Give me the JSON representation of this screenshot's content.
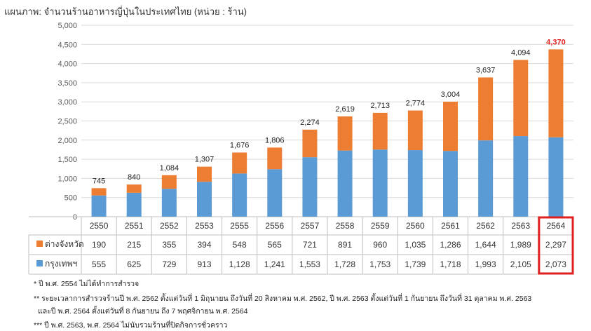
{
  "chart_data": {
    "type": "bar",
    "stacked": true,
    "title": "แผนภาพ: จำนวนร้านอาหารญี่ปุ่นในประเทศไทย (หน่วย : ร้าน)",
    "categories": [
      "2550",
      "2551",
      "2552",
      "2553",
      "2555",
      "2556",
      "2557",
      "2558",
      "2559",
      "2560",
      "2561",
      "2562",
      "2563",
      "2564"
    ],
    "series": [
      {
        "name": "กรุงเทพฯ",
        "color": "#5b9bd5",
        "values": [
          555,
          625,
          729,
          913,
          1128,
          1241,
          1553,
          1728,
          1753,
          1739,
          1718,
          1993,
          2105,
          2073
        ],
        "labels": [
          "555",
          "625",
          "729",
          "913",
          "1,128",
          "1,241",
          "1,553",
          "1,728",
          "1,753",
          "1,739",
          "1,718",
          "1,993",
          "2,105",
          "2,073"
        ]
      },
      {
        "name": "ต่างจังหวัด",
        "color": "#ed7d31",
        "values": [
          190,
          215,
          355,
          394,
          548,
          565,
          721,
          891,
          960,
          1035,
          1286,
          1644,
          1989,
          2297
        ],
        "labels": [
          "190",
          "215",
          "355",
          "394",
          "548",
          "565",
          "721",
          "891",
          "960",
          "1,035",
          "1,286",
          "1,644",
          "1,989",
          "2,297"
        ]
      }
    ],
    "totals": [
      745,
      840,
      1084,
      1307,
      1676,
      1806,
      2274,
      2619,
      2713,
      2774,
      3004,
      3637,
      4094,
      4370
    ],
    "total_labels": [
      "745",
      "840",
      "1,084",
      "1,307",
      "1,676",
      "1,806",
      "2,274",
      "2,619",
      "2,713",
      "2,774",
      "3,004",
      "3,637",
      "4,094",
      "4,370"
    ],
    "highlight_index": 13,
    "highlight_color": "#e02020",
    "ylim": [
      0,
      5000
    ],
    "yticks": [
      "0",
      "500",
      "1,000",
      "1,500",
      "2,000",
      "2,500",
      "3,000",
      "3,500",
      "4,000",
      "4,500",
      "5,000"
    ],
    "grid": true,
    "data_table": true
  },
  "footnotes": [
    "* ปี พ.ศ. 2554 ไม่ได้ทำการสำรวจ",
    "** ระยะเวลาการสำรวจร้านปี พ.ศ. 2562 ตั้งแต่วันที่ 1 มิถุนายน ถึงวันที่ 20 สิงหาคม พ.ศ. 2562, ปี พ.ศ. 2563 ตั้งแต่วันที่ 1 กันยายน ถึงวันที่ 31 ตุลาคม พ.ศ. 2563",
    "และปี พ.ศ. 2564 ตั้งแต่วันที่ 8 กันยายน ถึง 7 พฤศจิกายน พ.ศ. 2564",
    "*** ปี พ.ศ. 2563, พ.ศ. 2564 ไม่นับรวมร้านที่ปิดกิจการชั่วคราว"
  ]
}
